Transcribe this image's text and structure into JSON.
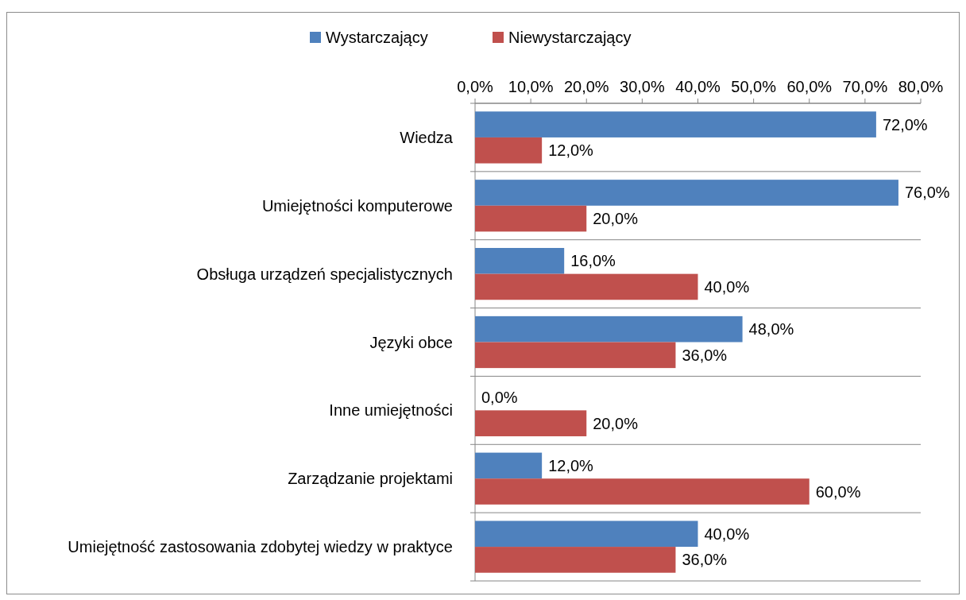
{
  "chart_data": {
    "type": "bar",
    "orientation": "horizontal",
    "categories": [
      "Wiedza",
      "Umiejętności komputerowe",
      "Obsługa urządzeń specjalistycznych",
      "Języki obce",
      "Inne umiejętności",
      "Zarządzanie projektami",
      "Umiejętność zastosowania zdobytej wiedzy w praktyce"
    ],
    "series": [
      {
        "name": "Wystarczający",
        "color": "#4f81bd",
        "values": [
          72,
          76,
          16,
          48,
          0,
          12,
          40
        ],
        "value_labels": [
          "72,0%",
          "76,0%",
          "16,0%",
          "48,0%",
          "0,0%",
          "12,0%",
          "40,0%"
        ]
      },
      {
        "name": "Niewystarczający",
        "color": "#c0504d",
        "values": [
          12,
          20,
          40,
          36,
          20,
          60,
          36
        ],
        "value_labels": [
          "12,0%",
          "20,0%",
          "40,0%",
          "36,0%",
          "20,0%",
          "60,0%",
          "36,0%"
        ]
      }
    ],
    "xlim": [
      0,
      80
    ],
    "xticks": [
      {
        "value": 0,
        "label": "0,0%"
      },
      {
        "value": 10,
        "label": "10,0%"
      },
      {
        "value": 20,
        "label": "20,0%"
      },
      {
        "value": 30,
        "label": "30,0%"
      },
      {
        "value": 40,
        "label": "40,0%"
      },
      {
        "value": 50,
        "label": "50,0%"
      },
      {
        "value": 60,
        "label": "60,0%"
      },
      {
        "value": 70,
        "label": "70,0%"
      },
      {
        "value": 80,
        "label": "80,0%"
      }
    ],
    "grid": "y",
    "legend": "top"
  }
}
